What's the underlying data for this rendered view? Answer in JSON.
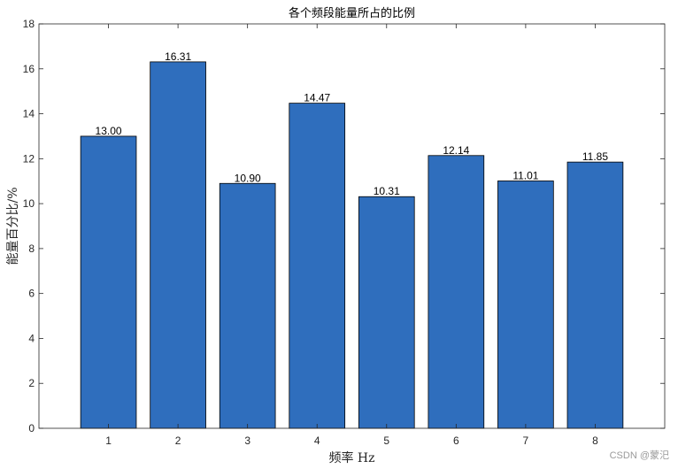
{
  "chart_data": {
    "type": "bar",
    "title": "各个频段能量所占的比例",
    "xlabel": "频率 Hz",
    "ylabel": "能量百分比/%",
    "categories": [
      "1",
      "2",
      "3",
      "4",
      "5",
      "6",
      "7",
      "8"
    ],
    "values": [
      13.0,
      16.31,
      10.9,
      14.47,
      10.31,
      12.14,
      11.01,
      11.85
    ],
    "value_labels": [
      "13.00",
      "16.31",
      "10.90",
      "14.47",
      "10.31",
      "12.14",
      "11.01",
      "11.85"
    ],
    "xlim": [
      0,
      9
    ],
    "ylim": [
      0,
      18
    ],
    "yticks": [
      0,
      2,
      4,
      6,
      8,
      10,
      12,
      14,
      16,
      18
    ],
    "grid": false,
    "bar_color": "#2f6ebd"
  },
  "watermark": "CSDN @蒙汜"
}
